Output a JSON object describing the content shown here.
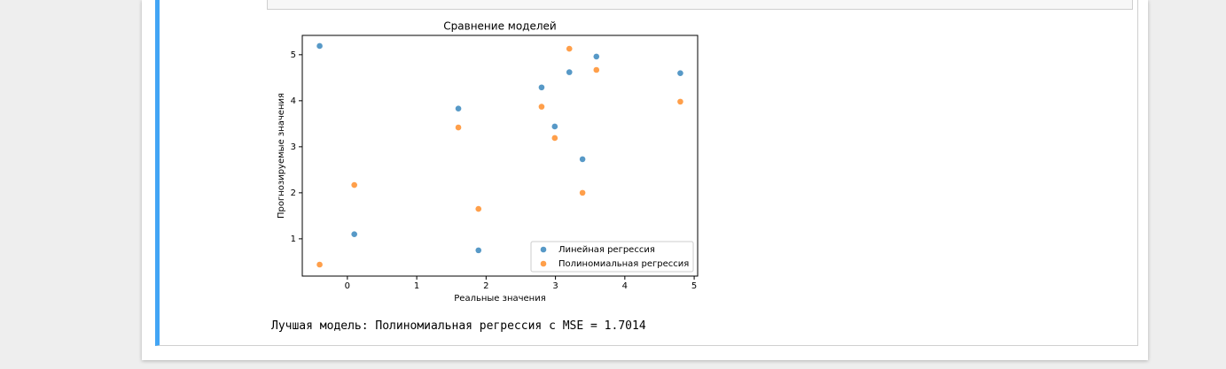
{
  "chart_data": {
    "type": "scatter",
    "title": "Сравнение моделей",
    "x_label": "Реальные значения",
    "y_label": "Прогнозируемые значения",
    "x": [
      -0.4,
      0.1,
      1.6,
      1.89,
      2.8,
      2.99,
      3.2,
      3.39,
      3.59,
      4.8
    ],
    "series": [
      {
        "name": "Линейная регрессия",
        "color": "#1f77b4",
        "values": [
          5.19,
          1.1,
          3.83,
          0.75,
          4.29,
          3.44,
          4.62,
          2.73,
          4.96,
          4.6
        ]
      },
      {
        "name": "Полиномиальная регрессия",
        "color": "#ff7f0e",
        "values": [
          0.44,
          2.17,
          3.42,
          1.65,
          3.87,
          3.19,
          5.13,
          2.0,
          4.67,
          3.98
        ]
      }
    ],
    "xlim": [
      -0.65,
      5.05
    ],
    "ylim": [
      0.19,
      5.42
    ],
    "xticks": [
      0,
      1,
      2,
      3,
      4,
      5
    ],
    "yticks": [
      1,
      2,
      3,
      4,
      5
    ],
    "legend": "lower right"
  },
  "output": {
    "text": "Лучшая модель: Полиномиальная регрессия с MSE = 1.7014"
  }
}
